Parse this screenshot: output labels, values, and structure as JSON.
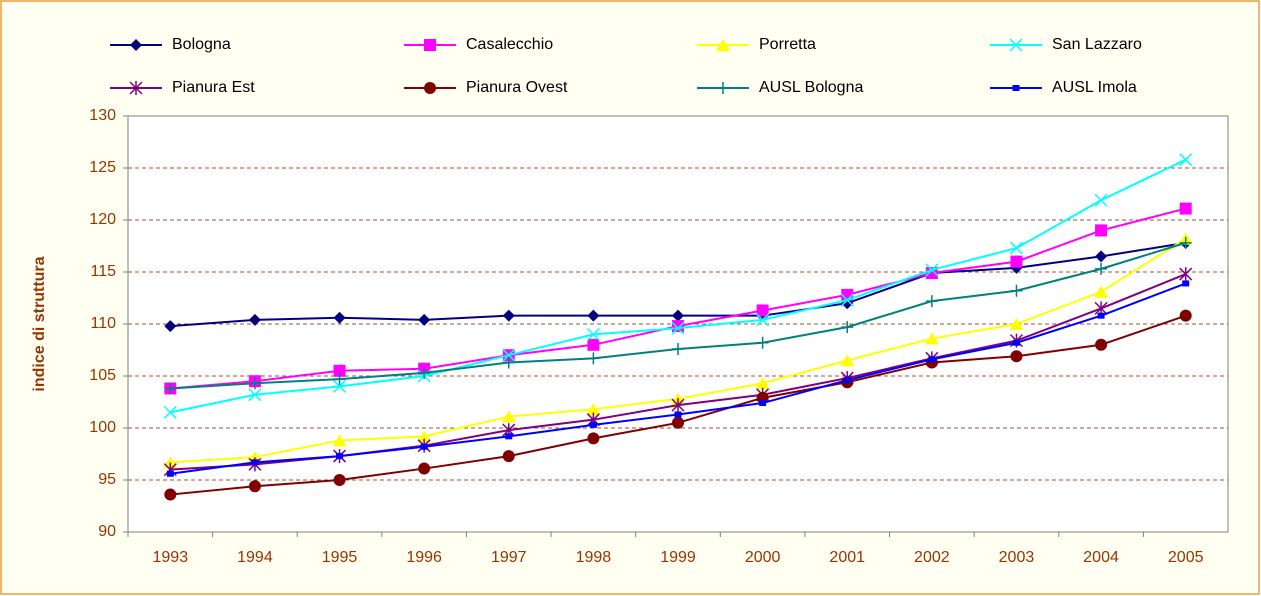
{
  "chart_data": {
    "type": "line",
    "y_label": "indice di struttura",
    "categories": [
      "1993",
      "1994",
      "1995",
      "1996",
      "1997",
      "1998",
      "1999",
      "2000",
      "2001",
      "2002",
      "2003",
      "2004",
      "2005"
    ],
    "ylim": [
      90,
      130
    ],
    "yticks": [
      90,
      95,
      100,
      105,
      110,
      115,
      120,
      125,
      130
    ],
    "grid": true,
    "series": [
      {
        "name": "Bologna",
        "color": "#000080",
        "marker": "diamond",
        "values": [
          109.8,
          110.4,
          110.6,
          110.4,
          110.8,
          110.8,
          110.8,
          110.8,
          112.0,
          114.9,
          115.4,
          116.5,
          117.8
        ]
      },
      {
        "name": "Casalecchio",
        "color": "#ff00ff",
        "marker": "square",
        "values": [
          103.8,
          104.5,
          105.5,
          105.7,
          107.0,
          108.0,
          109.8,
          111.3,
          112.8,
          114.9,
          116.0,
          119.0,
          121.1
        ]
      },
      {
        "name": "Porretta",
        "color": "#ffff00",
        "marker": "triangle",
        "values": [
          96.7,
          97.2,
          98.8,
          99.2,
          101.1,
          101.8,
          102.8,
          104.3,
          106.5,
          108.6,
          110.0,
          113.1,
          118.2
        ]
      },
      {
        "name": "San Lazzaro",
        "color": "#00ffff",
        "marker": "x",
        "values": [
          101.5,
          103.2,
          104.0,
          105.0,
          107.0,
          109.0,
          109.6,
          110.4,
          112.3,
          115.2,
          117.3,
          121.9,
          125.8
        ]
      },
      {
        "name": "Pianura Est",
        "color": "#800080",
        "marker": "star",
        "values": [
          96.0,
          96.5,
          97.3,
          98.3,
          99.8,
          100.8,
          102.2,
          103.2,
          104.8,
          106.7,
          108.4,
          111.5,
          114.8
        ]
      },
      {
        "name": "Pianura Ovest",
        "color": "#800000",
        "marker": "circle",
        "values": [
          93.6,
          94.4,
          95.0,
          96.1,
          97.3,
          99.0,
          100.5,
          102.9,
          104.4,
          106.3,
          106.9,
          108.0,
          110.8
        ]
      },
      {
        "name": "AUSL Bologna",
        "color": "#008080",
        "marker": "plus",
        "values": [
          103.8,
          104.3,
          104.7,
          105.3,
          106.3,
          106.7,
          107.6,
          108.2,
          109.7,
          112.2,
          113.2,
          115.3,
          117.8
        ]
      },
      {
        "name": "AUSL Imola",
        "color": "#0000ff",
        "marker": "smallsquare",
        "values": [
          95.6,
          96.7,
          97.3,
          98.2,
          99.2,
          100.3,
          101.3,
          102.4,
          104.6,
          106.6,
          108.2,
          110.8,
          113.9
        ]
      }
    ]
  }
}
